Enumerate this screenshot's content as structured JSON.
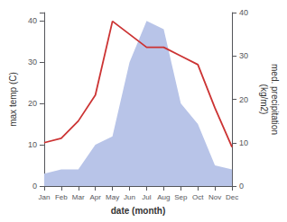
{
  "chart_data": {
    "type": "line",
    "xlabel": "date (month)",
    "ylabel": "max temp (C)",
    "y2label": "med. precipitation\n(kg/m2)",
    "categories": [
      "Jan",
      "Feb",
      "Mar",
      "Apr",
      "May",
      "Jun",
      "Jul",
      "Aug",
      "Sep",
      "Oct",
      "Nov",
      "Dec"
    ],
    "series": [
      {
        "type": "area",
        "color": "#b8c4e8",
        "values": [
          3,
          4,
          4,
          10,
          12,
          30,
          40,
          38,
          20,
          15,
          5,
          4
        ]
      },
      {
        "type": "line",
        "color": "#cc3333",
        "axis": "y2",
        "values": [
          10,
          11,
          15,
          21,
          38,
          35,
          32,
          32,
          30,
          28,
          18,
          9
        ]
      }
    ],
    "ylim": [
      0,
      42
    ],
    "yticks": [
      0,
      10,
      20,
      30,
      40
    ],
    "y2lim": [
      0,
      40
    ],
    "y2ticks": [
      0,
      10,
      20,
      30,
      40
    ],
    "grid": false
  }
}
